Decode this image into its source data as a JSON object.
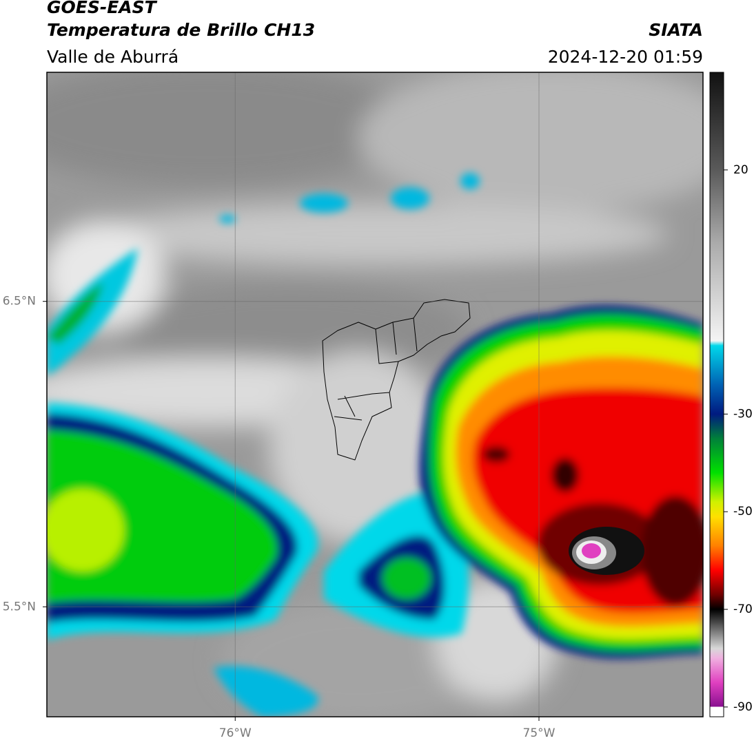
{
  "header": {
    "title": "GOES-EAST",
    "subtitle": "Temperatura de Brillo CH13",
    "source": "SIATA",
    "region": "Valle de Aburrá",
    "timestamp": "2024-12-20 01:59"
  },
  "map": {
    "lonlim": [
      -76.62,
      -74.46
    ],
    "latlim": [
      5.14,
      7.25
    ],
    "lat_ticks": [
      {
        "value": 6.5,
        "label": "6.5°N"
      },
      {
        "value": 5.5,
        "label": "5.5°N"
      }
    ],
    "lon_ticks": [
      {
        "value": -76,
        "label": "76°W"
      },
      {
        "value": -75,
        "label": "75°W"
      }
    ]
  },
  "colorbar": {
    "lim": [
      -92,
      40
    ],
    "ticks": [
      20,
      -30,
      -50,
      -70,
      -90
    ],
    "colormap": [
      {
        "value": 40,
        "color": "#111111"
      },
      {
        "value": 20,
        "color": "#5a5a5a"
      },
      {
        "value": 5,
        "color": "#ababab"
      },
      {
        "value": -15,
        "color": "#f4f4f4"
      },
      {
        "value": -16,
        "color": "#00d8ea"
      },
      {
        "value": -24,
        "color": "#0062b4"
      },
      {
        "value": -30,
        "color": "#001a80"
      },
      {
        "value": -35,
        "color": "#00803a"
      },
      {
        "value": -42,
        "color": "#00e000"
      },
      {
        "value": -48,
        "color": "#d0f000"
      },
      {
        "value": -51,
        "color": "#ffe000"
      },
      {
        "value": -57,
        "color": "#ff8000"
      },
      {
        "value": -62,
        "color": "#ff0000"
      },
      {
        "value": -67,
        "color": "#700000"
      },
      {
        "value": -70,
        "color": "#000000"
      },
      {
        "value": -78,
        "color": "#d8d8d8"
      },
      {
        "value": -80,
        "color": "#f0b0e0"
      },
      {
        "value": -85,
        "color": "#e040c0"
      },
      {
        "value": -89.9,
        "color": "#8a1090"
      },
      {
        "value": -90,
        "color": "#ffffff"
      },
      {
        "value": -92,
        "color": "#ffffff"
      }
    ]
  }
}
